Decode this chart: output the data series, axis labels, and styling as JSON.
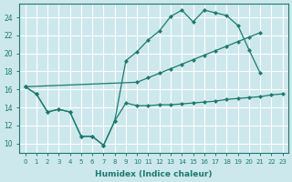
{
  "xlabel": "Humidex (Indice chaleur)",
  "bg_color": "#cce8ec",
  "grid_color": "#ffffff",
  "line_color": "#1a7a6e",
  "xlim": [
    -0.5,
    23.5
  ],
  "ylim": [
    9.0,
    25.5
  ],
  "yticks": [
    10,
    12,
    14,
    16,
    18,
    20,
    22,
    24
  ],
  "line_bottom_x": [
    0,
    1,
    2,
    3,
    4,
    5,
    6,
    7,
    8,
    9,
    10,
    11,
    12,
    13,
    14,
    15,
    16,
    17,
    18,
    19,
    20,
    21,
    22,
    23
  ],
  "line_bottom_y": [
    16.3,
    15.5,
    13.5,
    13.8,
    13.5,
    10.8,
    10.8,
    9.8,
    12.5,
    14.5,
    14.2,
    14.2,
    14.3,
    14.3,
    14.4,
    14.5,
    14.6,
    14.7,
    14.9,
    15.0,
    15.1,
    15.2,
    15.4,
    15.5
  ],
  "line_upper_x": [
    0,
    1,
    2,
    3,
    4,
    5,
    6,
    7,
    8,
    9,
    10,
    11,
    12,
    13,
    14,
    15,
    16,
    17,
    18,
    19,
    20,
    21
  ],
  "line_upper_y": [
    16.3,
    15.5,
    13.5,
    13.8,
    13.5,
    10.8,
    10.8,
    9.8,
    12.5,
    19.2,
    20.2,
    21.5,
    22.5,
    24.1,
    24.8,
    23.5,
    24.8,
    24.5,
    24.2,
    23.1,
    20.4,
    17.8
  ],
  "line_diag_x": [
    0,
    10,
    11,
    12,
    13,
    14,
    15,
    16,
    17,
    18,
    19,
    20,
    21
  ],
  "line_diag_y": [
    16.3,
    16.8,
    17.3,
    17.8,
    18.3,
    18.8,
    19.3,
    19.8,
    20.3,
    20.8,
    21.3,
    21.8,
    22.3
  ]
}
